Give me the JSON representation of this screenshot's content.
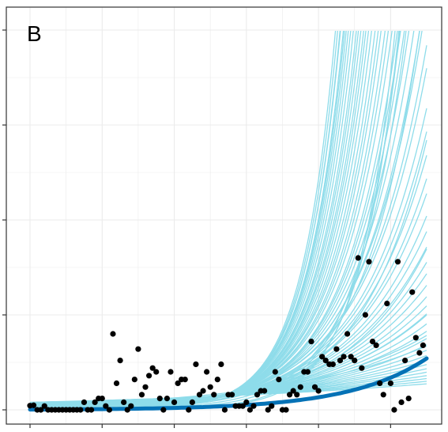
{
  "chart_data": {
    "type": "scatter",
    "panel_label": "B",
    "xlim": [
      0,
      120
    ],
    "ylim": [
      -0.02,
      1.02
    ],
    "grid": true,
    "colors": {
      "points": "#000000",
      "fit_line": "#0572b6",
      "sample_curves": "#8edcea",
      "grid": "#ebebeb",
      "border": "#333333"
    },
    "points": [
      [
        0,
        0.011
      ],
      [
        1,
        0.012
      ],
      [
        2,
        0.0
      ],
      [
        3,
        0.0
      ],
      [
        4,
        0.01
      ],
      [
        5,
        0.0
      ],
      [
        6,
        0.0
      ],
      [
        7,
        0.0
      ],
      [
        8,
        0.0
      ],
      [
        9,
        0.0
      ],
      [
        10,
        0.0
      ],
      [
        11,
        0.0
      ],
      [
        12,
        0.0
      ],
      [
        13,
        0.0
      ],
      [
        14,
        0.0
      ],
      [
        15,
        0.02
      ],
      [
        16,
        0.0
      ],
      [
        17,
        0.0
      ],
      [
        18,
        0.02
      ],
      [
        19,
        0.03
      ],
      [
        20,
        0.03
      ],
      [
        21,
        0.01
      ],
      [
        22,
        0.0
      ],
      [
        23,
        0.2
      ],
      [
        24,
        0.07
      ],
      [
        25,
        0.13
      ],
      [
        26,
        0.02
      ],
      [
        27,
        0.0
      ],
      [
        28,
        0.01
      ],
      [
        29,
        0.08
      ],
      [
        30,
        0.16
      ],
      [
        31,
        0.04
      ],
      [
        32,
        0.06
      ],
      [
        33,
        0.09
      ],
      [
        34,
        0.11
      ],
      [
        35,
        0.1
      ],
      [
        36,
        0.03
      ],
      [
        37,
        0.0
      ],
      [
        38,
        0.03
      ],
      [
        39,
        0.1
      ],
      [
        40,
        0.02
      ],
      [
        41,
        0.07
      ],
      [
        42,
        0.08
      ],
      [
        43,
        0.08
      ],
      [
        44,
        0.0
      ],
      [
        45,
        0.02
      ],
      [
        46,
        0.12
      ],
      [
        47,
        0.04
      ],
      [
        48,
        0.05
      ],
      [
        49,
        0.1
      ],
      [
        50,
        0.06
      ],
      [
        51,
        0.04
      ],
      [
        52,
        0.08
      ],
      [
        53,
        0.12
      ],
      [
        54,
        0.0
      ],
      [
        55,
        0.04
      ],
      [
        56,
        0.04
      ],
      [
        57,
        0.01
      ],
      [
        58,
        0.01
      ],
      [
        59,
        0.01
      ],
      [
        60,
        0.02
      ],
      [
        61,
        0.0
      ],
      [
        62,
        0.01
      ],
      [
        63,
        0.04
      ],
      [
        64,
        0.05
      ],
      [
        65,
        0.05
      ],
      [
        66,
        0.0
      ],
      [
        67,
        0.01
      ],
      [
        68,
        0.1
      ],
      [
        69,
        0.08
      ],
      [
        70,
        0.0
      ],
      [
        71,
        0.0
      ],
      [
        72,
        0.04
      ],
      [
        73,
        0.05
      ],
      [
        74,
        0.04
      ],
      [
        75,
        0.06
      ],
      [
        76,
        0.1
      ],
      [
        77,
        0.1
      ],
      [
        78,
        0.18
      ],
      [
        79,
        0.06
      ],
      [
        80,
        0.05
      ],
      [
        81,
        0.14
      ],
      [
        82,
        0.13
      ],
      [
        83,
        0.12
      ],
      [
        84,
        0.12
      ],
      [
        85,
        0.16
      ],
      [
        86,
        0.13
      ],
      [
        87,
        0.14
      ],
      [
        88,
        0.2
      ],
      [
        89,
        0.14
      ],
      [
        90,
        0.13
      ],
      [
        91,
        0.4
      ],
      [
        92,
        0.11
      ],
      [
        93,
        0.25
      ],
      [
        94,
        0.39
      ],
      [
        95,
        0.18
      ],
      [
        96,
        0.17
      ],
      [
        97,
        0.07
      ],
      [
        98,
        0.04
      ],
      [
        99,
        0.28
      ],
      [
        100,
        0.07
      ],
      [
        101,
        0.0
      ],
      [
        102,
        0.39
      ],
      [
        103,
        0.02
      ],
      [
        104,
        0.13
      ],
      [
        105,
        0.03
      ],
      [
        106,
        0.31
      ],
      [
        107,
        0.19
      ],
      [
        108,
        0.15
      ],
      [
        109,
        0.17
      ]
    ],
    "fit_curve": {
      "model": "exponential",
      "a": 0.00077,
      "b": 0.047
    },
    "sample_curves": {
      "model": "exponential",
      "params": [
        [
          0.02,
          0.0112
        ],
        [
          0.0184,
          0.0128
        ],
        [
          0.0169,
          0.0144
        ],
        [
          0.0155,
          0.016
        ],
        [
          0.0143,
          0.0176
        ],
        [
          0.0131,
          0.0192
        ],
        [
          0.0121,
          0.0208
        ],
        [
          0.0111,
          0.0224
        ],
        [
          0.0102,
          0.024
        ],
        [
          0.0094,
          0.0256
        ],
        [
          0.0086,
          0.0272
        ],
        [
          0.0079,
          0.0288
        ],
        [
          0.0073,
          0.0304
        ],
        [
          0.0067,
          0.032
        ],
        [
          0.0062,
          0.0336
        ],
        [
          0.0057,
          0.0352
        ],
        [
          0.0052,
          0.0368
        ],
        [
          0.0048,
          0.0384
        ],
        [
          0.0044,
          0.04
        ],
        [
          0.004,
          0.0416
        ],
        [
          0.0037,
          0.0432
        ],
        [
          0.0034,
          0.0448
        ],
        [
          0.0031,
          0.0464
        ],
        [
          0.0029,
          0.048
        ],
        [
          0.0026,
          0.0496
        ],
        [
          0.0024,
          0.0512
        ],
        [
          0.0022,
          0.0528
        ],
        [
          0.002,
          0.0544
        ],
        [
          0.0019,
          0.056
        ],
        [
          0.0017,
          0.0576
        ],
        [
          0.0016,
          0.0592
        ],
        [
          0.0014,
          0.0608
        ],
        [
          0.0013,
          0.0624
        ],
        [
          0.0012,
          0.064
        ],
        [
          0.0011,
          0.0656
        ],
        [
          0.001,
          0.0672
        ],
        [
          0.0009,
          0.0688
        ],
        [
          0.00085,
          0.0704
        ],
        [
          0.00078,
          0.072
        ],
        [
          0.00071,
          0.0736
        ],
        [
          0.00066,
          0.0752
        ],
        [
          0.0006,
          0.0768
        ],
        [
          0.00055,
          0.0784
        ],
        [
          0.00051,
          0.08
        ],
        [
          0.00047,
          0.0816
        ],
        [
          0.00043,
          0.0832
        ],
        [
          0.00039,
          0.0848
        ],
        [
          0.00036,
          0.0864
        ],
        [
          0.00033,
          0.088
        ],
        [
          0.0003,
          0.0896
        ],
        [
          0.00028,
          0.0912
        ],
        [
          0.00026,
          0.0928
        ],
        [
          0.00024,
          0.0944
        ],
        [
          0.00022,
          0.096
        ],
        [
          0.0002,
          0.0976
        ],
        [
          0.00018,
          0.0992
        ],
        [
          0.00017,
          0.1008
        ],
        [
          0.00015,
          0.1024
        ],
        [
          0.00014,
          0.104
        ],
        [
          0.00013,
          0.1056
        ],
        [
          0.012,
          0.024
        ],
        [
          0.009,
          0.028
        ],
        [
          0.006,
          0.034
        ],
        [
          0.003,
          0.045
        ],
        [
          0.0015,
          0.056
        ],
        [
          0.0008,
          0.066
        ],
        [
          0.0004,
          0.075
        ],
        [
          0.0002,
          0.083
        ],
        [
          0.0001,
          0.09
        ],
        [
          6e-05,
          0.096
        ]
      ]
    },
    "x_ticks": [
      0,
      20,
      40,
      60,
      80,
      100
    ],
    "y_ticks": [
      0,
      0.25,
      0.5,
      0.75,
      1.0
    ]
  }
}
